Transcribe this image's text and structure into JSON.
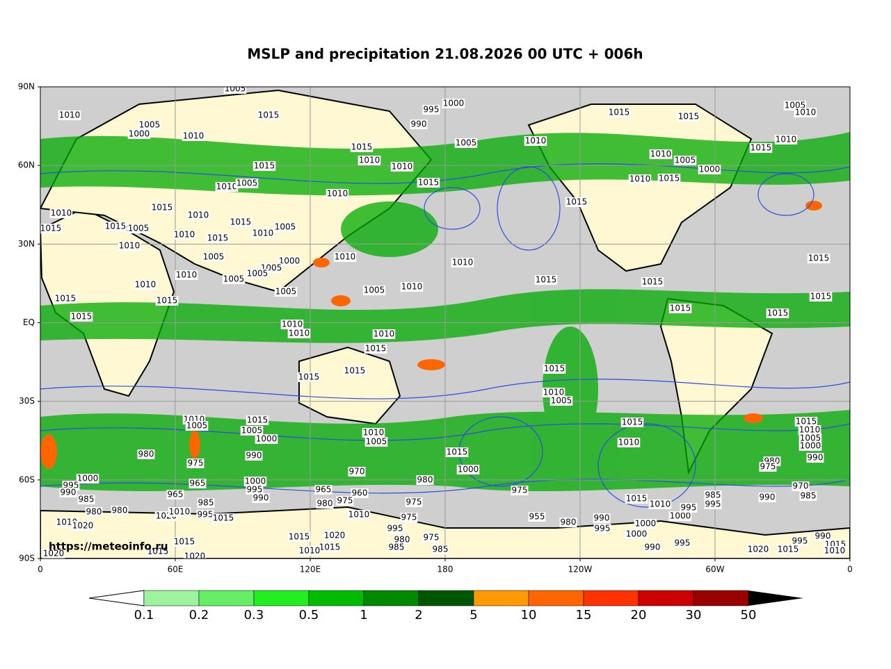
{
  "map": {
    "title": "MSLP and precipitation 21.08.2026 00 UTC + 006h",
    "watermark": "https://meteoinfo.ru",
    "lat_ticks": [
      {
        "value": 90,
        "label": "90N"
      },
      {
        "value": 60,
        "label": "60N"
      },
      {
        "value": 30,
        "label": "30N"
      },
      {
        "value": 0,
        "label": "EQ"
      },
      {
        "value": -30,
        "label": "30S"
      },
      {
        "value": -60,
        "label": "60S"
      },
      {
        "value": -90,
        "label": "90S"
      }
    ],
    "lon_ticks": [
      {
        "value": 0,
        "label": "0"
      },
      {
        "value": 60,
        "label": "60E"
      },
      {
        "value": 120,
        "label": "120E"
      },
      {
        "value": 180,
        "label": "180"
      },
      {
        "value": 240,
        "label": "120W"
      },
      {
        "value": 300,
        "label": "60W"
      },
      {
        "value": 360,
        "label": "0"
      }
    ],
    "colorbar": {
      "levels": [
        0.1,
        0.2,
        0.3,
        0.5,
        1,
        2,
        5,
        10,
        15,
        20,
        30,
        50
      ],
      "colors": [
        "#9ef29e",
        "#66ee66",
        "#22ee22",
        "#00bb00",
        "#008800",
        "#005500",
        "#ff9900",
        "#ff6600",
        "#ff3300",
        "#cc0000",
        "#990000"
      ],
      "under_color": "#ffffff",
      "over_color": "#000000"
    },
    "isobar_labels": [
      1005,
      1010,
      1015,
      995,
      1000,
      990,
      1005,
      1000,
      1010,
      1015,
      1010,
      1005,
      1010,
      1015,
      1015,
      1005,
      1010,
      1010,
      1015,
      1015,
      1010,
      1015,
      1010,
      1005,
      1010,
      1010,
      1005,
      1000,
      1010,
      1015,
      1015,
      1015,
      1010,
      1015,
      1010,
      1005,
      1010,
      1015,
      1010,
      1005,
      1015,
      1010,
      1015,
      1005,
      1010,
      1000,
      1005,
      1010,
      1010,
      1005,
      1005,
      1010,
      1015,
      1005,
      1010,
      1005,
      1015,
      1015,
      1015,
      1015,
      1015,
      1015,
      1015,
      1010,
      1010,
      1010,
      1015,
      1015,
      1015,
      1015,
      1010,
      1005,
      1015,
      1015,
      1010,
      1005,
      1000,
      990,
      1010,
      1005,
      1015,
      1005,
      1000,
      990,
      980,
      975,
      965,
      1000,
      995,
      990,
      985,
      980,
      980,
      1020,
      1010,
      995,
      1015,
      1010,
      1020,
      965,
      985,
      1000,
      995,
      990,
      1010,
      1005,
      1015,
      1000,
      970,
      960,
      965,
      980,
      975,
      1010,
      980,
      975,
      975,
      975,
      995,
      980,
      985,
      975,
      985,
      955,
      980,
      990,
      995,
      1015,
      1010,
      1000,
      1000,
      990,
      995,
      1000,
      995,
      1015,
      1010,
      980,
      975,
      970,
      985,
      990,
      985,
      995,
      1015,
      1015,
      1020,
      1015,
      1010,
      1020,
      1020,
      1015,
      990,
      995,
      1015,
      1020,
      1015,
      1010
    ]
  }
}
